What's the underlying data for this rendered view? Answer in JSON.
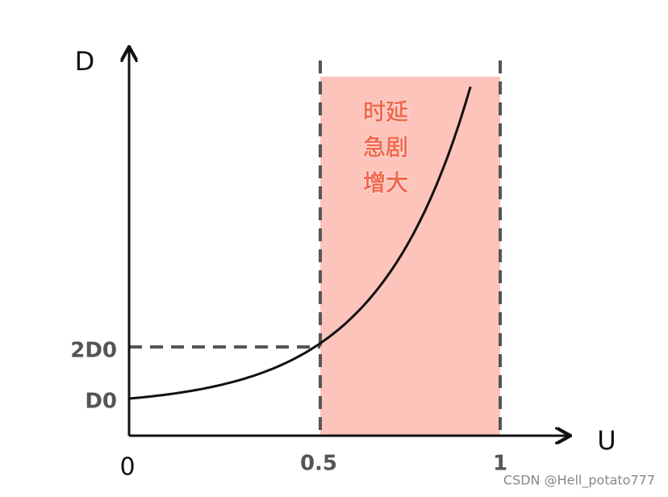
{
  "axes": {
    "y_label": "D",
    "x_label": "U"
  },
  "x_ticks": [
    "0",
    "0.5",
    "1"
  ],
  "y_ticks": [
    "2D0",
    "D0"
  ],
  "annotation": [
    "时延",
    "急剧",
    "增大"
  ],
  "watermark": "CSDN @Hell_potato777"
}
